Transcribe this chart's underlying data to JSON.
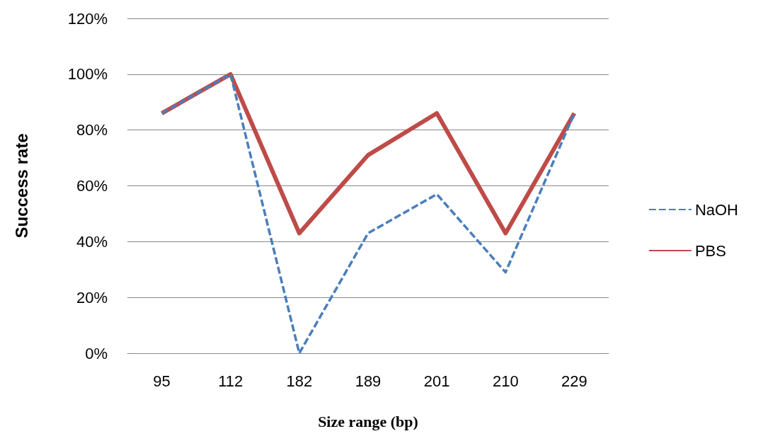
{
  "chart_data": {
    "type": "line",
    "xlabel": "Size range (bp)",
    "ylabel": "Success rate",
    "categories": [
      "95",
      "112",
      "182",
      "189",
      "201",
      "210",
      "229"
    ],
    "series": [
      {
        "name": "NaOH",
        "color": "#4a7ebb",
        "line_style": "dashed",
        "values": [
          86,
          100,
          0,
          43,
          57,
          29,
          86
        ]
      },
      {
        "name": "PBS",
        "color": "#be4b48",
        "line_style": "solid",
        "values": [
          86,
          100,
          43,
          71,
          86,
          43,
          86
        ]
      }
    ],
    "ylim": [
      0,
      120
    ],
    "yticks": [
      {
        "value": 0,
        "label": "0%"
      },
      {
        "value": 20,
        "label": "20%"
      },
      {
        "value": 40,
        "label": "40%"
      },
      {
        "value": 60,
        "label": "60%"
      },
      {
        "value": 80,
        "label": "80%"
      },
      {
        "value": 100,
        "label": "100%"
      },
      {
        "value": 120,
        "label": "120%"
      }
    ],
    "grid": "y",
    "legend": "right",
    "marker": "none"
  }
}
